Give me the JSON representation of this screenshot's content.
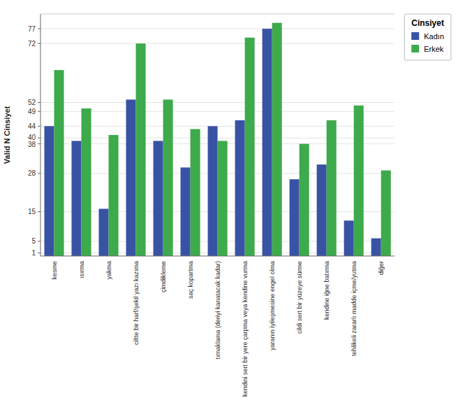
{
  "chart_data": {
    "type": "bar",
    "categories": [
      "kesme",
      "ısırma",
      "yakma",
      "ciltte bir harf/şekil yazı kazıma",
      "çimdikleme",
      "saç kopartma",
      "tırnaklama (deriyi kanatacak kadar)",
      "kendini sert bir yere çarpma veya kendine vurma",
      "yaranın iyileşmesine engel olma",
      "cildi sert bir yüzeye sürme",
      "kendine iğne batırma",
      "tehlikeli zararlı madde içme/yutma",
      "diğer"
    ],
    "series": [
      {
        "name": "Kadın",
        "color": "#3953A4",
        "values": [
          44,
          39,
          16,
          53,
          39,
          30,
          44,
          46,
          77,
          26,
          31,
          12,
          6
        ]
      },
      {
        "name": "Erkek",
        "color": "#3DAA4B",
        "values": [
          63,
          50,
          41,
          72,
          53,
          43,
          39,
          74,
          79,
          38,
          46,
          51,
          29
        ]
      }
    ],
    "ylabel": "Valid N Cinsiyet",
    "legend_title": "Cinsiyet",
    "ylim": [
      0,
      82
    ],
    "yticks": [
      1,
      5,
      15,
      28,
      38,
      40,
      44,
      49,
      52,
      72,
      77
    ],
    "grid": true,
    "legend": "right"
  }
}
